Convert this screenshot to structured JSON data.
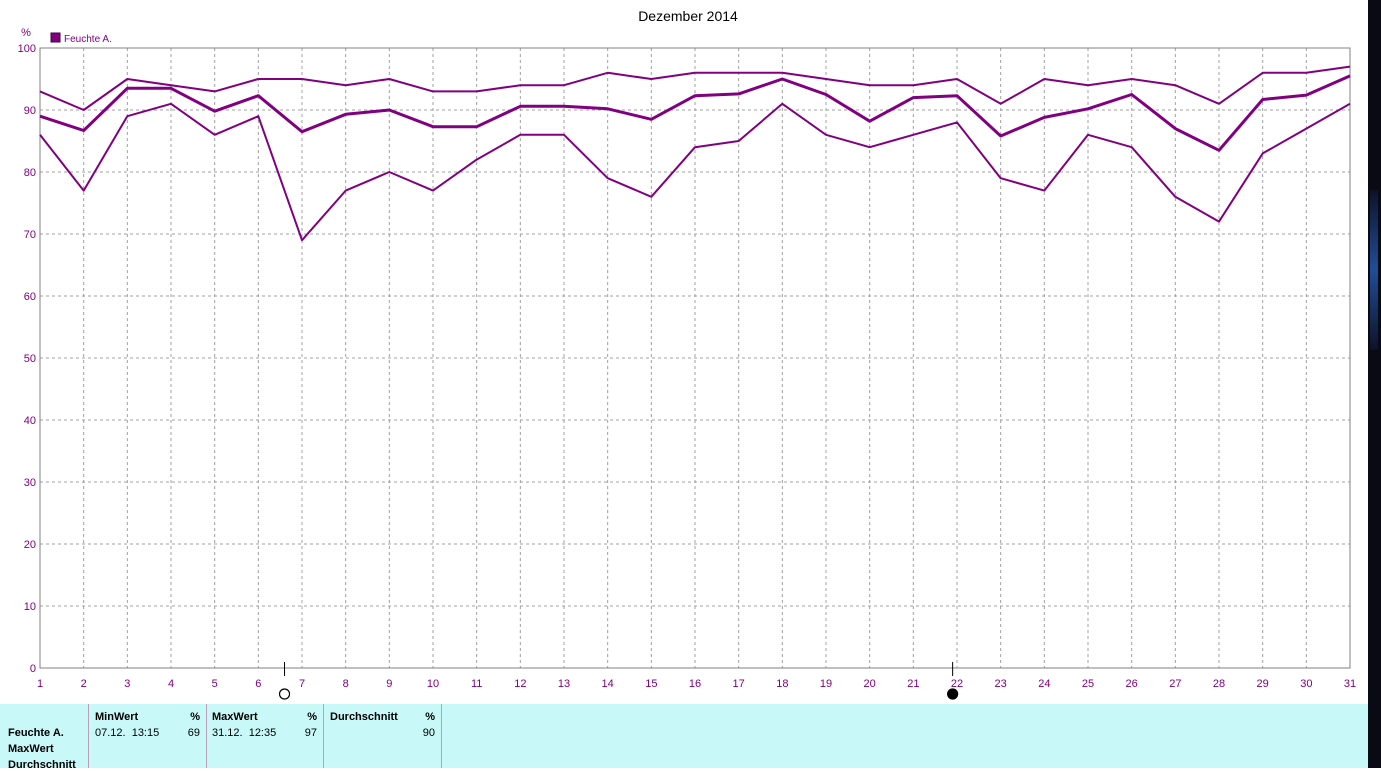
{
  "chart_data": {
    "type": "line",
    "title": "Dezember 2014",
    "ylabel": "%",
    "ylim": [
      0,
      100
    ],
    "yticks": [
      0,
      10,
      20,
      30,
      40,
      50,
      60,
      70,
      80,
      90,
      100
    ],
    "xlim": [
      1,
      31
    ],
    "x": [
      1,
      2,
      3,
      4,
      5,
      6,
      7,
      8,
      9,
      10,
      11,
      12,
      13,
      14,
      15,
      16,
      17,
      18,
      19,
      20,
      21,
      22,
      23,
      24,
      25,
      26,
      27,
      28,
      29,
      30,
      31
    ],
    "grid": true,
    "legend": {
      "position": "top-left",
      "entries": [
        "Feuchte A."
      ]
    },
    "series": [
      {
        "name": "Feuchte A.",
        "role": "max",
        "values": [
          93,
          90,
          95,
          94,
          93,
          95,
          95,
          94,
          95,
          93,
          93,
          94,
          94,
          96,
          95,
          96,
          96,
          96,
          95,
          94,
          94,
          95,
          91,
          95,
          94,
          95,
          94,
          91,
          96,
          96,
          97
        ]
      },
      {
        "name": "Feuchte A.",
        "role": "avg",
        "values": [
          89,
          86.7,
          93.5,
          93.5,
          89.8,
          92.3,
          86.5,
          89.3,
          90,
          87.3,
          87.3,
          90.6,
          90.6,
          90.2,
          88.5,
          92.3,
          92.6,
          95,
          92.5,
          88.2,
          92,
          92.3,
          85.8,
          88.8,
          90.2,
          92.5,
          87,
          83.5,
          91.7,
          92.4,
          95.5
        ]
      },
      {
        "name": "Feuchte A.",
        "role": "min",
        "values": [
          86,
          77,
          89,
          91,
          86,
          89,
          69,
          77,
          80,
          77,
          82,
          86,
          86,
          79,
          76,
          84,
          85,
          91,
          86,
          84,
          86,
          88,
          79,
          77,
          86,
          84,
          76,
          72,
          83,
          87,
          91
        ]
      }
    ],
    "moon_markers": [
      {
        "phase": "full-moon",
        "day": 6.6
      },
      {
        "phase": "new-moon",
        "day": 21.9
      }
    ],
    "colors": {
      "series": "#800080",
      "axis_text": "#800080",
      "grid": "#a0a0a0",
      "stats_bg": "#c8f8f8"
    }
  },
  "stats": {
    "row_labels": [
      "Feuchte A.",
      "MaxWert",
      "Durchschnitt"
    ],
    "columns": [
      {
        "header": "MinWert",
        "unit": "%",
        "time": "07.12.  13:15",
        "value": "69"
      },
      {
        "header": "MaxWert",
        "unit": "%",
        "time": "31.12.  12:35",
        "value": "97"
      },
      {
        "header": "Durchschnitt",
        "unit": "%",
        "time": "",
        "value": "90"
      }
    ]
  }
}
